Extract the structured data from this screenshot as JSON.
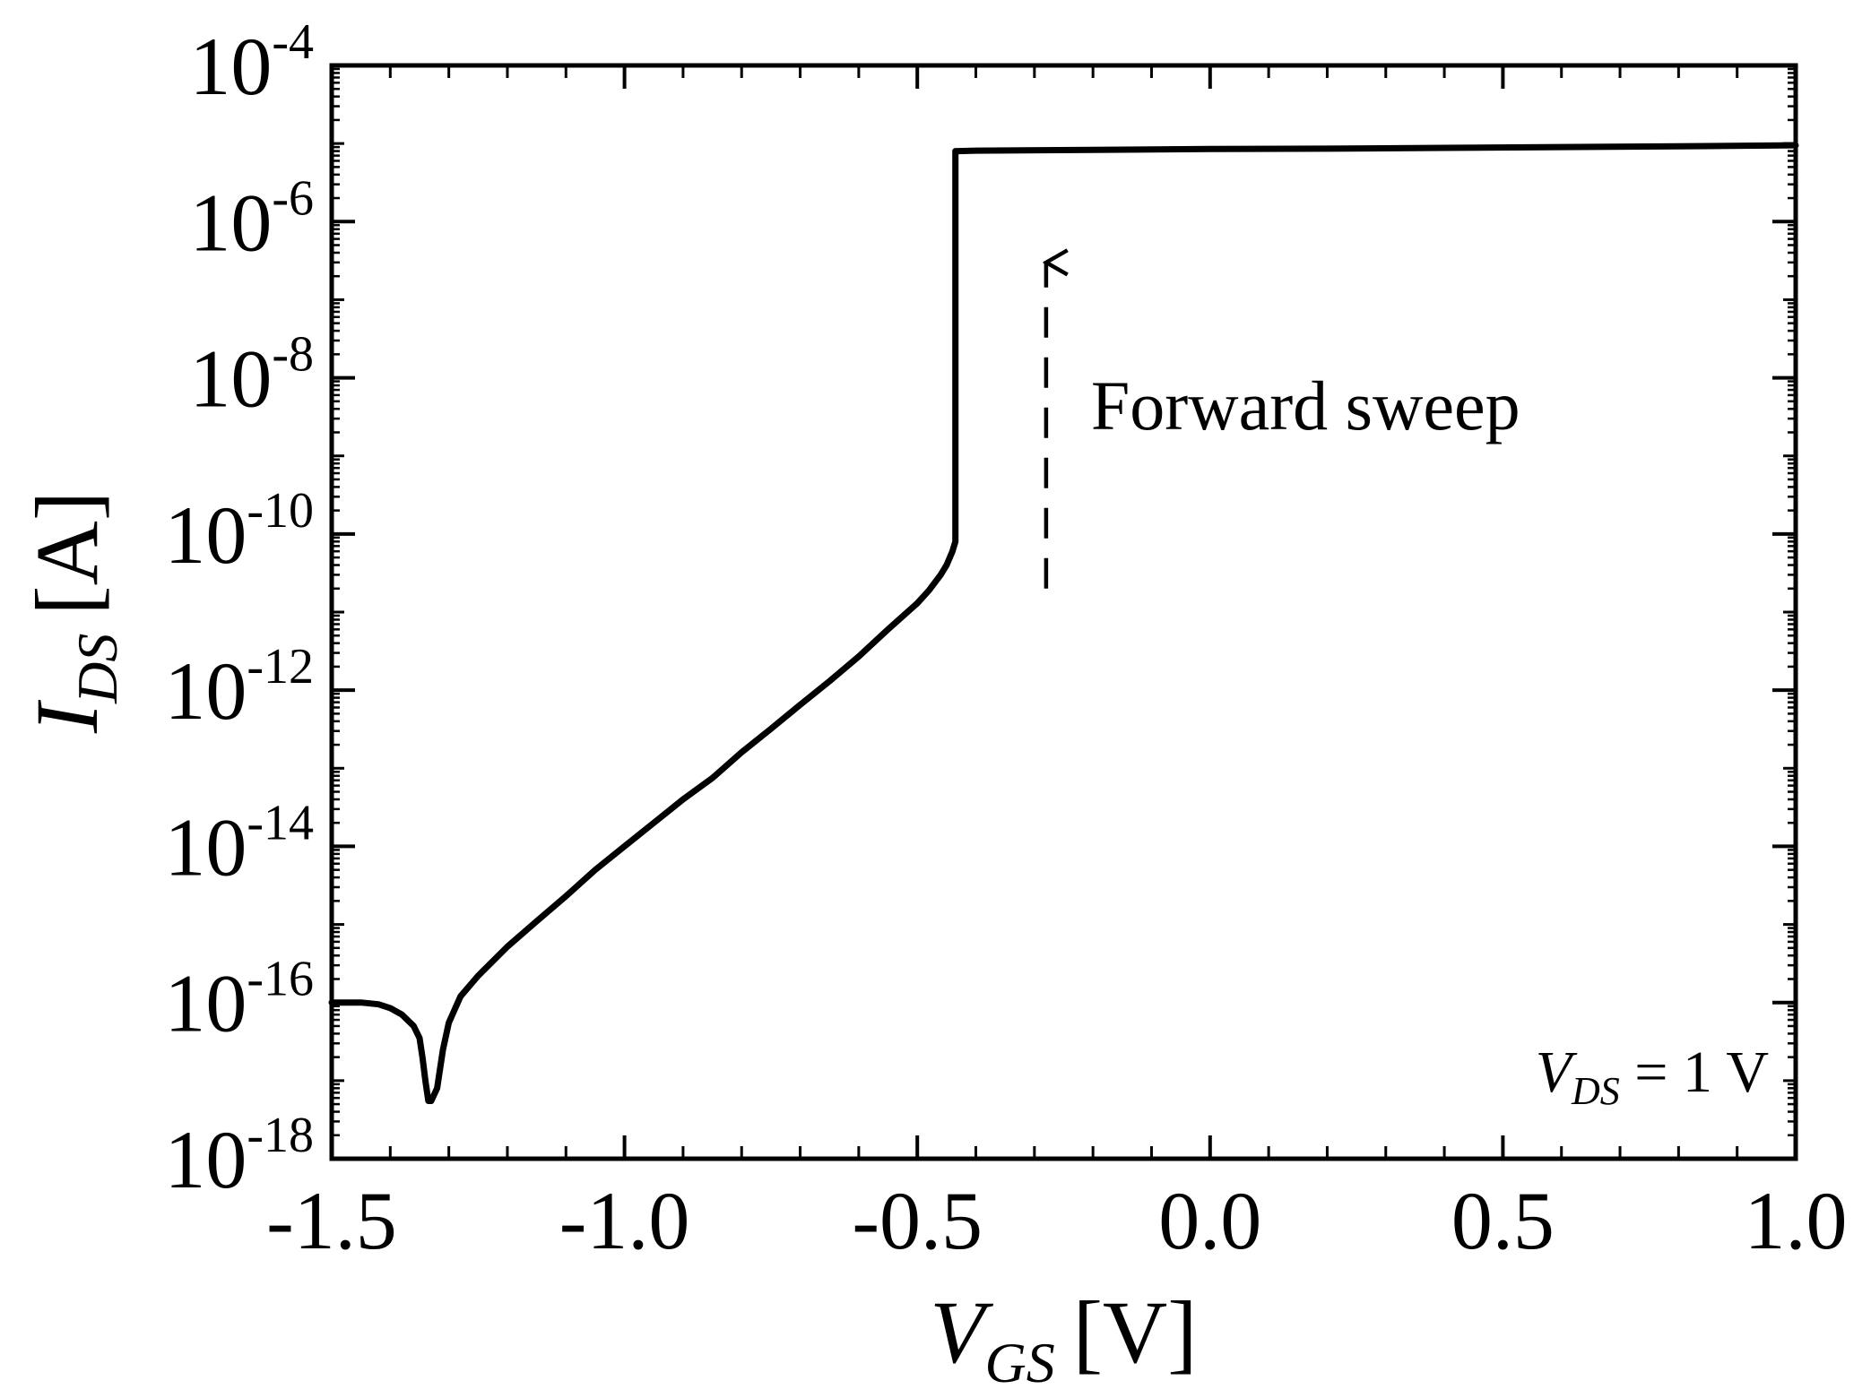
{
  "chart_data": {
    "type": "line",
    "title": "",
    "x_label": {
      "var": "V",
      "sub": "GS",
      "unit": "[V]"
    },
    "y_label": {
      "var": "I",
      "sub": "DS",
      "unit": "[A]"
    },
    "xlim": [
      -1.5,
      1.0
    ],
    "ylim": [
      1e-18,
      0.0001
    ],
    "yscale": "log",
    "grid": false,
    "x_ticks": [
      {
        "value": -1.5,
        "label": "-1.5"
      },
      {
        "value": -1.0,
        "label": "-1.0"
      },
      {
        "value": -0.5,
        "label": "-0.5"
      },
      {
        "value": 0.0,
        "label": "0.0"
      },
      {
        "value": 0.5,
        "label": "0.5"
      },
      {
        "value": 1.0,
        "label": "1.0"
      }
    ],
    "y_ticks": [
      {
        "value": 1e-18,
        "base": "10",
        "exp": "-18"
      },
      {
        "value": 1e-16,
        "base": "10",
        "exp": "-16"
      },
      {
        "value": 1e-14,
        "base": "10",
        "exp": "-14"
      },
      {
        "value": 1e-12,
        "base": "10",
        "exp": "-12"
      },
      {
        "value": 1e-10,
        "base": "10",
        "exp": "-10"
      },
      {
        "value": 1e-08,
        "base": "10",
        "exp": "-8"
      },
      {
        "value": 1e-06,
        "base": "10",
        "exp": "-6"
      },
      {
        "value": 0.0001,
        "base": "10",
        "exp": "-4"
      }
    ],
    "series": [
      {
        "color": "#000000",
        "x": [
          -1.5,
          -1.45,
          -1.42,
          -1.4,
          -1.38,
          -1.36,
          -1.35,
          -1.345,
          -1.34,
          -1.335,
          -1.33,
          -1.32,
          -1.31,
          -1.3,
          -1.28,
          -1.25,
          -1.2,
          -1.15,
          -1.1,
          -1.05,
          -1.0,
          -0.95,
          -0.9,
          -0.85,
          -0.8,
          -0.75,
          -0.7,
          -0.65,
          -0.6,
          -0.55,
          -0.5,
          -0.48,
          -0.46,
          -0.45,
          -0.44,
          -0.435,
          -0.435,
          -0.43,
          -0.4,
          -0.2,
          0.0,
          0.2,
          0.4,
          0.6,
          0.8,
          1.0
        ],
        "y": [
          1e-16,
          1e-16,
          9.5e-17,
          8.5e-17,
          7e-17,
          5e-17,
          3.5e-17,
          2e-17,
          1e-17,
          5.5e-18,
          5.5e-18,
          8e-18,
          2.5e-17,
          5.5e-17,
          1.2e-16,
          2.2e-16,
          5.2e-16,
          1.1e-15,
          2.3e-15,
          5e-15,
          1e-14,
          2e-14,
          4e-14,
          7.5e-14,
          1.6e-13,
          3.2e-13,
          6.5e-13,
          1.3e-12,
          2.7e-12,
          6e-12,
          1.3e-11,
          1.9e-11,
          3e-11,
          4e-11,
          6e-11,
          8e-11,
          8e-06,
          8e-06,
          8.1e-06,
          8.3e-06,
          8.5e-06,
          8.6e-06,
          8.8e-06,
          9e-06,
          9.2e-06,
          9.5e-06
        ]
      }
    ],
    "annotations": [
      {
        "text": "Forward sweep",
        "arrow": "dashed",
        "direction": "up",
        "x": -0.28,
        "y_from": 2e-11,
        "y_to": 3e-07
      },
      {
        "var": "V",
        "sub": "DS",
        "rest": " = 1 V",
        "position": "bottom-right"
      }
    ]
  }
}
